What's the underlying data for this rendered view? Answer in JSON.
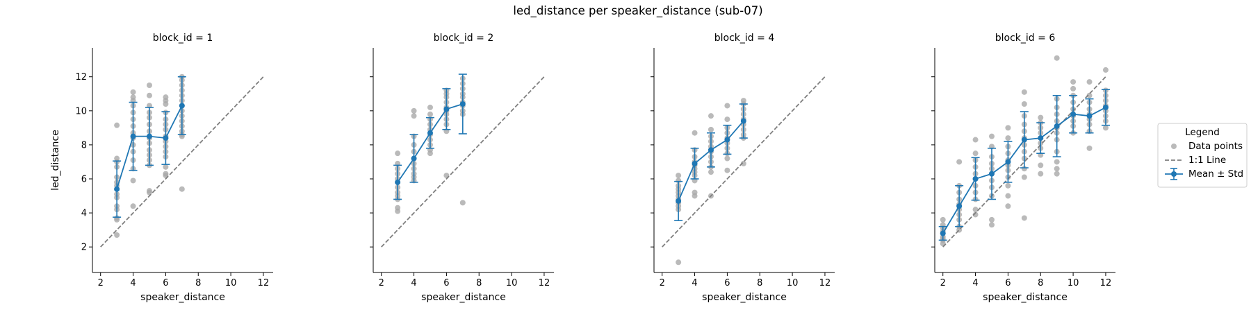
{
  "figure_title": "led_distance per speaker_distance (sub-07)",
  "colors": {
    "points": "#a9a9a9",
    "mean": "#1f77b4",
    "identity_line": "#7f7f7f"
  },
  "legend": {
    "title": "Legend",
    "items": [
      {
        "label": "Data points",
        "icon": "gray-dot"
      },
      {
        "label": "1:1 Line",
        "icon": "dashed-line"
      },
      {
        "label": "Mean ± Std",
        "icon": "errorbar-marker"
      }
    ],
    "placement": "center-right outside"
  },
  "chart_data": [
    {
      "type": "scatter",
      "title": "block_id = 1",
      "xlabel": "speaker_distance",
      "ylabel": "led_distance",
      "xlim": [
        1.5,
        12.6
      ],
      "ylim": [
        0.5,
        13.7
      ],
      "xticks": [
        2,
        4,
        6,
        8,
        10,
        12
      ],
      "yticks": [
        2,
        4,
        6,
        8,
        10,
        12
      ],
      "identity_line": [
        2,
        12
      ],
      "mean": {
        "x": [
          3,
          4,
          5,
          6,
          7
        ],
        "y": [
          5.4,
          8.5,
          8.5,
          8.4,
          10.3
        ],
        "std": [
          1.65,
          2.0,
          1.7,
          1.55,
          1.7
        ]
      },
      "points": [
        {
          "x": 3,
          "y": [
            9.15,
            7.2,
            7.0,
            6.7,
            6.1,
            5.8,
            5.6,
            5.4,
            5.1,
            4.9,
            4.4,
            4.2,
            3.7,
            3.6,
            2.7
          ]
        },
        {
          "x": 4,
          "y": [
            11.1,
            10.8,
            10.6,
            10.3,
            9.9,
            9.5,
            9.1,
            8.7,
            8.4,
            8.0,
            7.6,
            7.1,
            6.6,
            5.9,
            4.4
          ]
        },
        {
          "x": 5,
          "y": [
            11.5,
            10.9,
            10.3,
            9.9,
            9.6,
            9.2,
            8.8,
            8.4,
            8.1,
            7.7,
            7.4,
            7.1,
            6.8,
            5.3,
            5.2
          ]
        },
        {
          "x": 6,
          "y": [
            10.8,
            10.6,
            10.4,
            9.9,
            9.5,
            9.2,
            8.9,
            8.5,
            8.2,
            7.9,
            7.6,
            7.3,
            6.7,
            6.3,
            6.2
          ]
        },
        {
          "x": 7,
          "y": [
            12.0,
            11.8,
            11.5,
            11.2,
            10.9,
            10.6,
            10.3,
            10.0,
            9.7,
            9.4,
            9.1,
            8.8,
            8.6,
            8.5,
            5.4
          ]
        }
      ]
    },
    {
      "type": "scatter",
      "title": "block_id = 2",
      "xlabel": "speaker_distance",
      "ylabel": "",
      "xlim": [
        1.5,
        12.6
      ],
      "ylim": [
        0.5,
        13.7
      ],
      "xticks": [
        2,
        4,
        6,
        8,
        10,
        12
      ],
      "yticks": [
        2,
        4,
        6,
        8,
        10,
        12
      ],
      "identity_line": [
        2,
        12
      ],
      "mean": {
        "x": [
          3,
          4,
          5,
          6,
          7
        ],
        "y": [
          5.8,
          7.2,
          8.7,
          10.1,
          10.4
        ],
        "std": [
          1.0,
          1.4,
          0.9,
          1.2,
          1.75
        ]
      },
      "points": [
        {
          "x": 3,
          "y": [
            7.5,
            6.9,
            6.6,
            6.3,
            6.0,
            5.8,
            5.5,
            5.2,
            5.0,
            4.8,
            4.3,
            4.1
          ]
        },
        {
          "x": 4,
          "y": [
            10.0,
            9.7,
            8.5,
            8.0,
            7.6,
            7.2,
            6.9,
            6.6,
            6.3,
            6.1,
            5.9
          ]
        },
        {
          "x": 5,
          "y": [
            10.2,
            9.8,
            9.5,
            9.2,
            8.9,
            8.6,
            8.3,
            8.0,
            7.7,
            7.5
          ]
        },
        {
          "x": 6,
          "y": [
            11.2,
            11.0,
            10.8,
            10.5,
            10.2,
            10.0,
            9.8,
            9.5,
            9.2,
            8.8,
            6.2
          ]
        },
        {
          "x": 7,
          "y": [
            11.9,
            11.6,
            11.3,
            11.0,
            10.8,
            10.5,
            10.3,
            10.0,
            9.8,
            4.6
          ]
        }
      ]
    },
    {
      "type": "scatter",
      "title": "block_id = 4",
      "xlabel": "speaker_distance",
      "ylabel": "",
      "xlim": [
        1.5,
        12.6
      ],
      "ylim": [
        0.5,
        13.7
      ],
      "xticks": [
        2,
        4,
        6,
        8,
        10,
        12
      ],
      "yticks": [
        2,
        4,
        6,
        8,
        10,
        12
      ],
      "identity_line": [
        2,
        12
      ],
      "mean": {
        "x": [
          3,
          4,
          5,
          6,
          7
        ],
        "y": [
          4.7,
          6.9,
          7.7,
          8.3,
          9.4
        ],
        "std": [
          1.15,
          0.9,
          1.0,
          0.85,
          1.0
        ]
      },
      "points": [
        {
          "x": 3,
          "y": [
            6.2,
            5.9,
            5.6,
            5.4,
            5.2,
            5.0,
            4.8,
            4.6,
            4.4,
            4.2,
            1.1
          ]
        },
        {
          "x": 4,
          "y": [
            8.7,
            7.7,
            7.3,
            7.0,
            6.8,
            6.6,
            6.4,
            6.2,
            5.9,
            5.2,
            5.0
          ]
        },
        {
          "x": 5,
          "y": [
            9.7,
            8.9,
            8.5,
            8.2,
            7.9,
            7.6,
            7.3,
            7.0,
            6.7,
            6.4,
            5.0
          ]
        },
        {
          "x": 6,
          "y": [
            10.3,
            9.5,
            9.0,
            8.7,
            8.4,
            8.1,
            7.8,
            7.5,
            7.2,
            6.5
          ]
        },
        {
          "x": 7,
          "y": [
            10.6,
            10.4,
            10.1,
            9.8,
            9.5,
            9.2,
            8.9,
            8.6,
            8.4,
            6.9
          ]
        }
      ]
    },
    {
      "type": "scatter",
      "title": "block_id = 6",
      "xlabel": "speaker_distance",
      "ylabel": "",
      "xlim": [
        1.5,
        12.6
      ],
      "ylim": [
        0.5,
        13.7
      ],
      "xticks": [
        2,
        4,
        6,
        8,
        10,
        12
      ],
      "yticks": [
        2,
        4,
        6,
        8,
        10,
        12
      ],
      "identity_line": [
        2,
        12
      ],
      "mean": {
        "x": [
          2,
          3,
          4,
          5,
          6,
          7,
          8,
          9,
          10,
          11,
          12
        ],
        "y": [
          2.8,
          4.4,
          6.0,
          6.3,
          7.0,
          8.3,
          8.4,
          9.1,
          9.8,
          9.7,
          10.2
        ],
        "std": [
          0.4,
          1.2,
          1.25,
          1.5,
          1.2,
          1.65,
          0.9,
          1.8,
          1.1,
          1.0,
          1.05
        ]
      },
      "points": [
        {
          "x": 2,
          "y": [
            3.6,
            3.3,
            3.1,
            2.9,
            2.8,
            2.6,
            2.5,
            2.4,
            2.2
          ]
        },
        {
          "x": 3,
          "y": [
            7.0,
            5.6,
            5.2,
            4.8,
            4.5,
            4.2,
            3.9,
            3.6,
            3.2,
            3.0
          ]
        },
        {
          "x": 4,
          "y": [
            8.3,
            7.5,
            7.1,
            6.7,
            6.3,
            6.0,
            5.6,
            5.2,
            4.8,
            4.2,
            3.9
          ]
        },
        {
          "x": 5,
          "y": [
            8.5,
            7.9,
            7.3,
            6.9,
            6.6,
            6.3,
            5.9,
            5.5,
            5.0,
            3.6,
            3.3
          ]
        },
        {
          "x": 6,
          "y": [
            9.0,
            8.4,
            7.9,
            7.5,
            7.1,
            6.8,
            6.5,
            6.1,
            5.6,
            5.0,
            4.4
          ]
        },
        {
          "x": 7,
          "y": [
            11.1,
            10.4,
            9.7,
            9.2,
            8.8,
            8.4,
            8.0,
            7.6,
            7.2,
            6.6,
            6.1,
            3.7
          ]
        },
        {
          "x": 8,
          "y": [
            9.6,
            9.3,
            9.0,
            8.7,
            8.4,
            8.1,
            7.8,
            7.4,
            6.8,
            6.3
          ]
        },
        {
          "x": 9,
          "y": [
            13.1,
            10.7,
            10.2,
            9.8,
            9.4,
            9.0,
            8.7,
            8.3,
            7.6,
            7.0,
            6.6,
            6.3
          ]
        },
        {
          "x": 10,
          "y": [
            11.7,
            11.3,
            10.9,
            10.5,
            10.1,
            9.7,
            9.4,
            9.1,
            8.7
          ]
        },
        {
          "x": 11,
          "y": [
            11.7,
            10.9,
            10.5,
            10.1,
            9.8,
            9.5,
            9.2,
            8.8,
            7.8
          ]
        },
        {
          "x": 12,
          "y": [
            12.4,
            11.2,
            10.9,
            10.6,
            10.3,
            10.0,
            9.7,
            9.4,
            9.0
          ]
        }
      ]
    }
  ]
}
